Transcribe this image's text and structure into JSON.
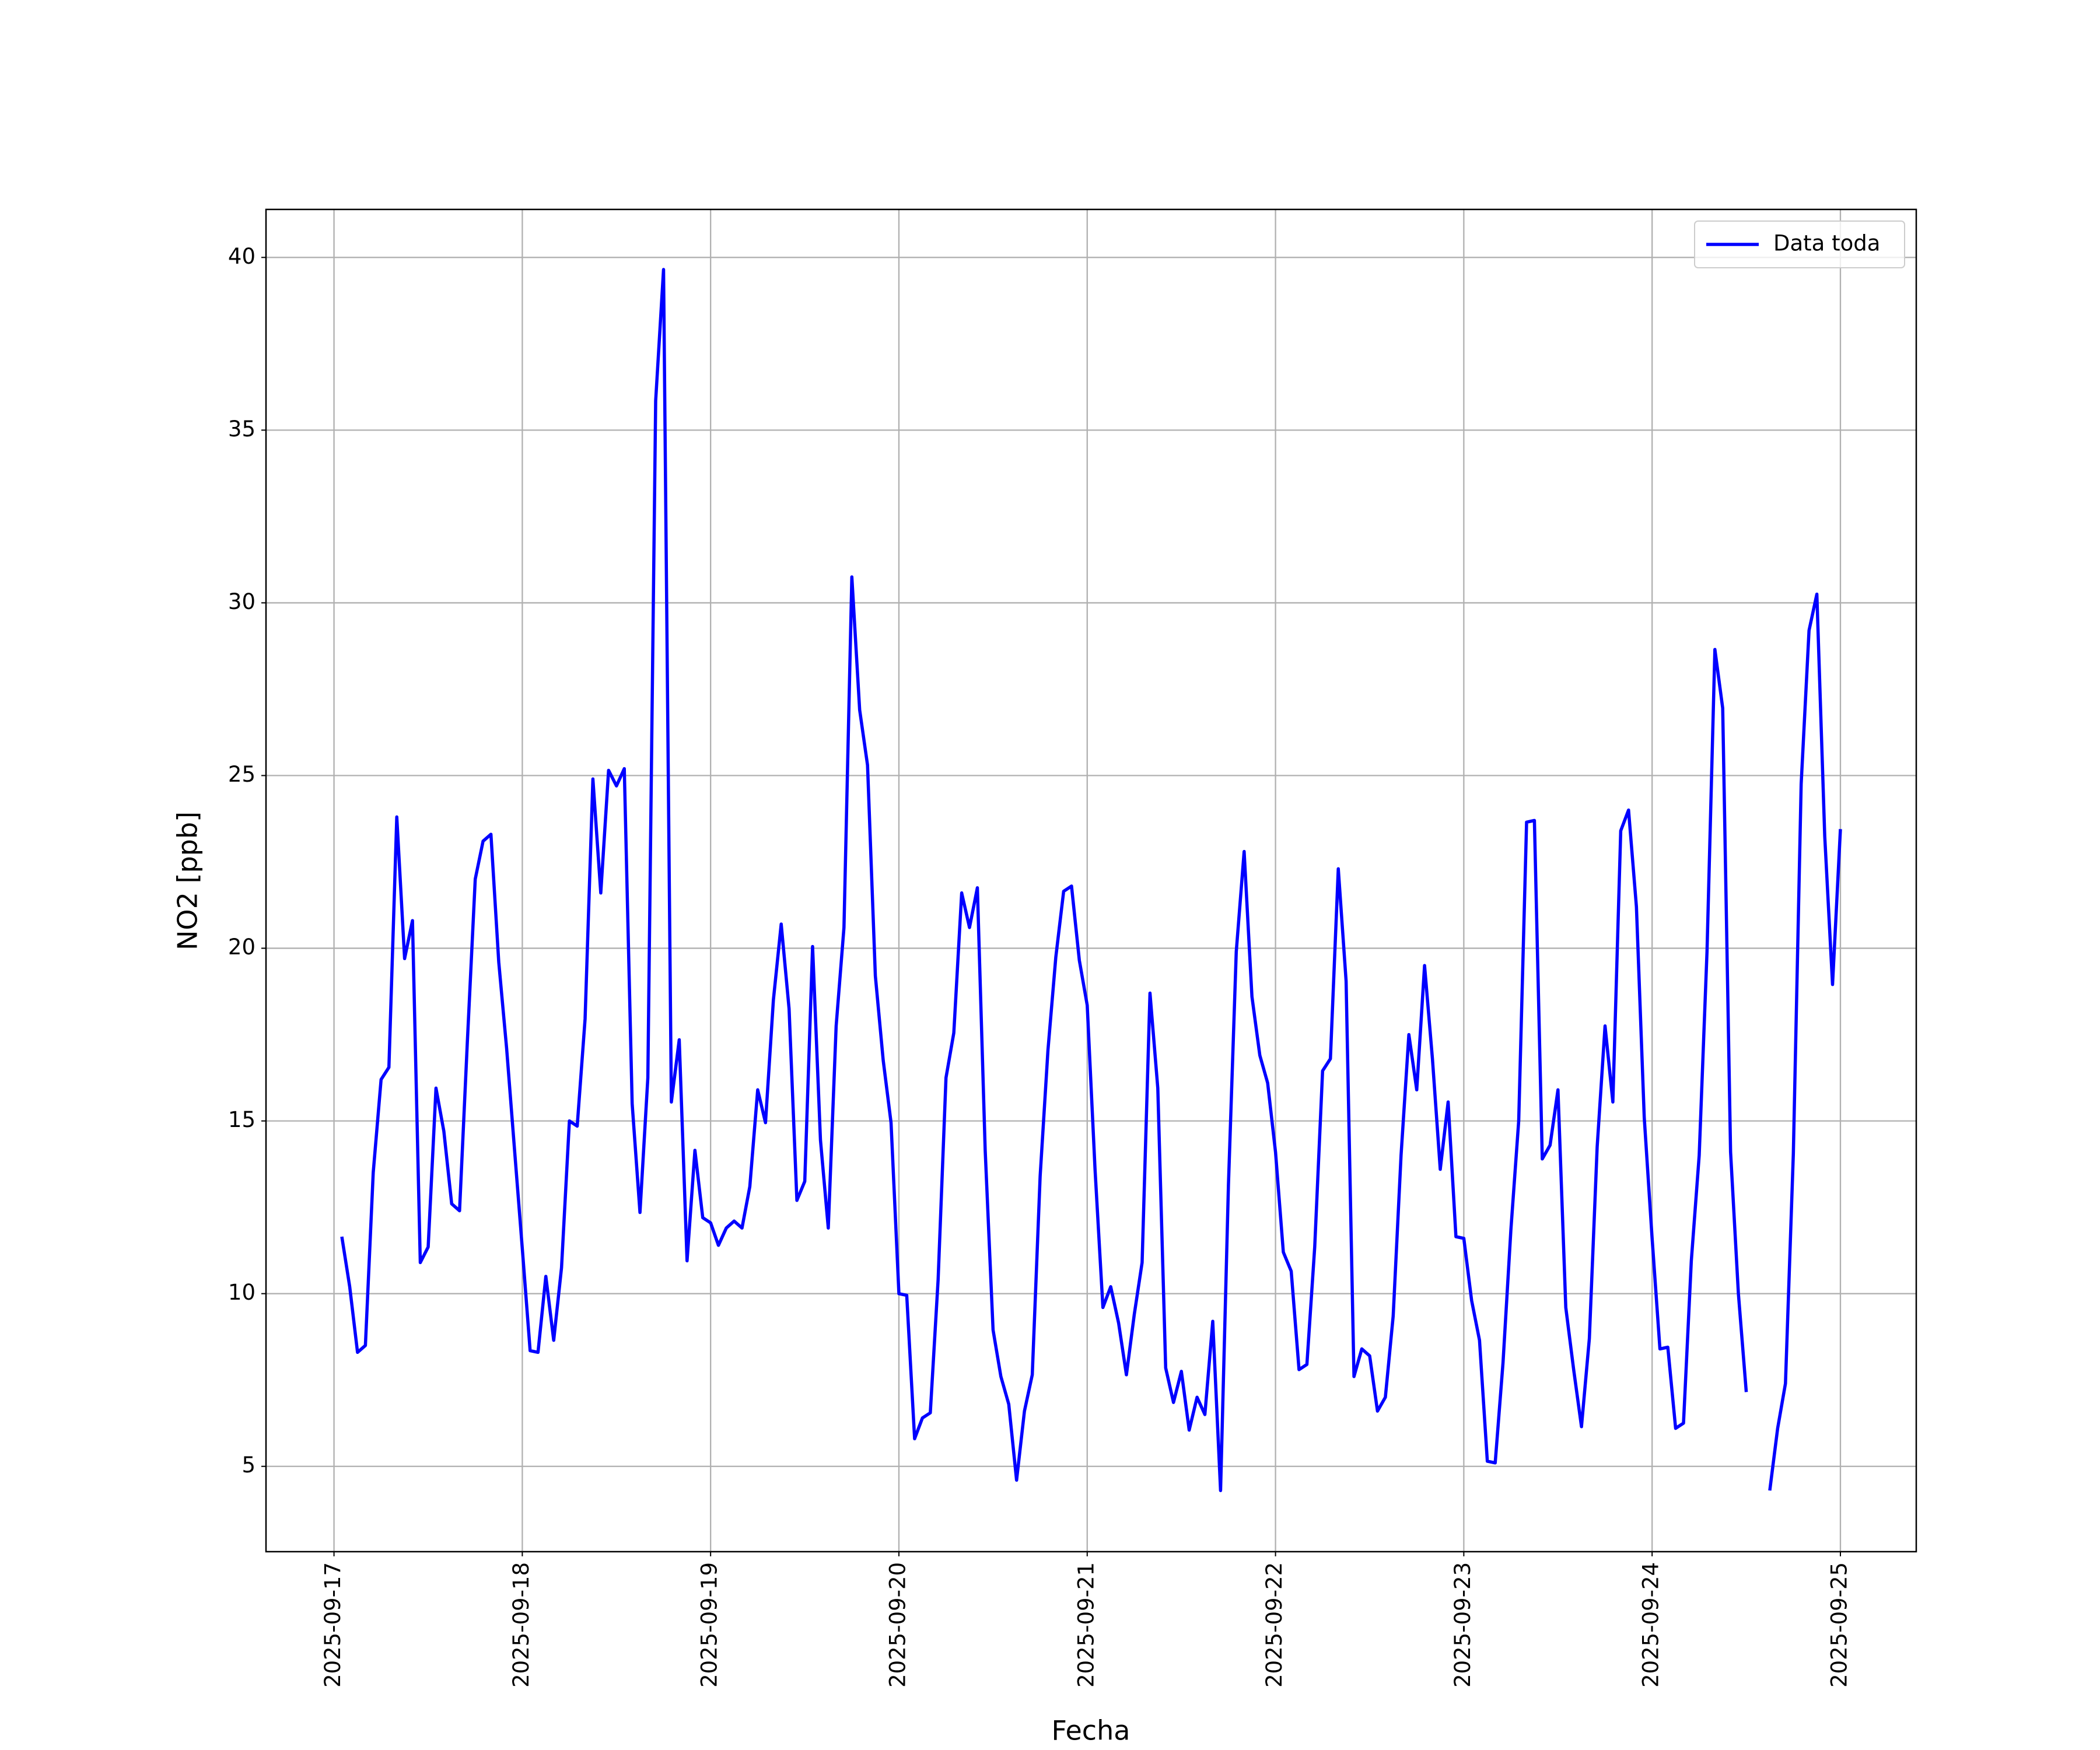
{
  "chart_data": {
    "type": "line",
    "xlabel": "Fecha",
    "ylabel": "NO2 [ppb]",
    "x": [
      "2025-09-17T01:00",
      "2025-09-17T02:00",
      "2025-09-17T03:00",
      "2025-09-17T04:00",
      "2025-09-17T05:00",
      "2025-09-17T06:00",
      "2025-09-17T07:00",
      "2025-09-17T08:00",
      "2025-09-17T09:00",
      "2025-09-17T10:00",
      "2025-09-17T11:00",
      "2025-09-17T12:00",
      "2025-09-17T13:00",
      "2025-09-17T14:00",
      "2025-09-17T15:00",
      "2025-09-17T16:00",
      "2025-09-17T17:00",
      "2025-09-17T18:00",
      "2025-09-17T19:00",
      "2025-09-17T20:00",
      "2025-09-17T21:00",
      "2025-09-17T22:00",
      "2025-09-17T23:00",
      "2025-09-18T00:00",
      "2025-09-18T01:00",
      "2025-09-18T02:00",
      "2025-09-18T03:00",
      "2025-09-18T04:00",
      "2025-09-18T05:00",
      "2025-09-18T06:00",
      "2025-09-18T07:00",
      "2025-09-18T08:00",
      "2025-09-18T09:00",
      "2025-09-18T10:00",
      "2025-09-18T11:00",
      "2025-09-18T12:00",
      "2025-09-18T13:00",
      "2025-09-18T14:00",
      "2025-09-18T15:00",
      "2025-09-18T16:00",
      "2025-09-18T17:00",
      "2025-09-18T18:00",
      "2025-09-18T19:00",
      "2025-09-18T20:00",
      "2025-09-18T21:00",
      "2025-09-18T22:00",
      "2025-09-18T23:00",
      "2025-09-19T00:00",
      "2025-09-19T01:00",
      "2025-09-19T02:00",
      "2025-09-19T03:00",
      "2025-09-19T04:00",
      "2025-09-19T05:00",
      "2025-09-19T06:00",
      "2025-09-19T07:00",
      "2025-09-19T08:00",
      "2025-09-19T09:00",
      "2025-09-19T10:00",
      "2025-09-19T11:00",
      "2025-09-19T12:00",
      "2025-09-19T13:00",
      "2025-09-19T14:00",
      "2025-09-19T15:00",
      "2025-09-19T16:00",
      "2025-09-19T17:00",
      "2025-09-19T18:00",
      "2025-09-19T19:00",
      "2025-09-19T20:00",
      "2025-09-19T21:00",
      "2025-09-19T22:00",
      "2025-09-19T23:00",
      "2025-09-20T00:00",
      "2025-09-20T01:00",
      "2025-09-20T02:00",
      "2025-09-20T03:00",
      "2025-09-20T04:00",
      "2025-09-20T05:00",
      "2025-09-20T06:00",
      "2025-09-20T07:00",
      "2025-09-20T08:00",
      "2025-09-20T09:00",
      "2025-09-20T10:00",
      "2025-09-20T11:00",
      "2025-09-20T12:00",
      "2025-09-20T13:00",
      "2025-09-20T14:00",
      "2025-09-20T15:00",
      "2025-09-20T16:00",
      "2025-09-20T17:00",
      "2025-09-20T18:00",
      "2025-09-20T19:00",
      "2025-09-20T20:00",
      "2025-09-20T21:00",
      "2025-09-20T22:00",
      "2025-09-20T23:00",
      "2025-09-21T00:00",
      "2025-09-21T01:00",
      "2025-09-21T02:00",
      "2025-09-21T03:00",
      "2025-09-21T04:00",
      "2025-09-21T05:00",
      "2025-09-21T06:00",
      "2025-09-21T07:00",
      "2025-09-21T08:00",
      "2025-09-21T09:00",
      "2025-09-21T10:00",
      "2025-09-21T11:00",
      "2025-09-21T12:00",
      "2025-09-21T13:00",
      "2025-09-21T14:00",
      "2025-09-21T15:00",
      "2025-09-21T16:00",
      "2025-09-21T17:00",
      "2025-09-21T18:00",
      "2025-09-21T19:00",
      "2025-09-21T20:00",
      "2025-09-21T21:00",
      "2025-09-21T22:00",
      "2025-09-21T23:00",
      "2025-09-22T00:00",
      "2025-09-22T01:00",
      "2025-09-22T02:00",
      "2025-09-22T03:00",
      "2025-09-22T04:00",
      "2025-09-22T05:00",
      "2025-09-22T06:00",
      "2025-09-22T07:00",
      "2025-09-22T08:00",
      "2025-09-22T09:00",
      "2025-09-22T10:00",
      "2025-09-22T11:00",
      "2025-09-22T12:00",
      "2025-09-22T13:00",
      "2025-09-22T14:00",
      "2025-09-22T15:00",
      "2025-09-22T16:00",
      "2025-09-22T17:00",
      "2025-09-22T18:00",
      "2025-09-22T19:00",
      "2025-09-22T20:00",
      "2025-09-22T21:00",
      "2025-09-22T22:00",
      "2025-09-22T23:00",
      "2025-09-23T00:00",
      "2025-09-23T01:00",
      "2025-09-23T02:00",
      "2025-09-23T03:00",
      "2025-09-23T04:00",
      "2025-09-23T05:00",
      "2025-09-23T06:00",
      "2025-09-23T07:00",
      "2025-09-23T08:00",
      "2025-09-23T09:00",
      "2025-09-23T10:00",
      "2025-09-23T11:00",
      "2025-09-23T12:00",
      "2025-09-23T13:00",
      "2025-09-23T14:00",
      "2025-09-23T15:00",
      "2025-09-23T16:00",
      "2025-09-23T17:00",
      "2025-09-23T18:00",
      "2025-09-23T19:00",
      "2025-09-23T20:00",
      "2025-09-23T21:00",
      "2025-09-23T22:00",
      "2025-09-23T23:00",
      "2025-09-24T00:00",
      "2025-09-24T01:00",
      "2025-09-24T02:00",
      "2025-09-24T03:00",
      "2025-09-24T04:00",
      "2025-09-24T05:00",
      "2025-09-24T06:00",
      "2025-09-24T07:00",
      "2025-09-24T08:00",
      "2025-09-24T09:00",
      "2025-09-24T10:00",
      "2025-09-24T11:00",
      "2025-09-24T12:00",
      "2025-09-24T13:00",
      "2025-09-24T14:00",
      "2025-09-24T15:00",
      "2025-09-24T16:00",
      "2025-09-24T17:00",
      "2025-09-24T18:00",
      "2025-09-24T19:00",
      "2025-09-24T20:00",
      "2025-09-24T21:00",
      "2025-09-24T22:00",
      "2025-09-24T23:00",
      "2025-09-25T00:00"
    ],
    "series": [
      {
        "name": "Data toda",
        "color": "#0000ff",
        "values": [
          11.65,
          10.2,
          8.3,
          8.5,
          13.5,
          16.2,
          16.55,
          23.8,
          19.7,
          20.8,
          10.9,
          11.35,
          15.95,
          14.7,
          12.6,
          12.4,
          17.3,
          22.0,
          23.1,
          23.3,
          19.6,
          17.1,
          14.2,
          11.3,
          8.35,
          8.3,
          10.5,
          8.65,
          10.75,
          15.0,
          14.85,
          17.95,
          24.9,
          21.6,
          25.15,
          24.7,
          25.2,
          15.5,
          12.35,
          16.25,
          35.85,
          39.65,
          15.55,
          17.35,
          10.95,
          14.15,
          12.2,
          12.05,
          11.4,
          11.9,
          12.1,
          11.9,
          13.1,
          15.9,
          14.95,
          18.5,
          20.7,
          18.25,
          12.7,
          13.25,
          20.05,
          14.45,
          11.9,
          17.75,
          20.6,
          30.75,
          26.9,
          25.3,
          19.2,
          16.75,
          14.95,
          10.0,
          9.95,
          5.8,
          6.4,
          6.55,
          10.4,
          16.25,
          17.55,
          21.6,
          20.6,
          21.75,
          14.15,
          8.95,
          7.6,
          6.8,
          4.6,
          6.6,
          7.65,
          13.4,
          17.05,
          19.75,
          21.65,
          21.8,
          19.65,
          18.35,
          13.6,
          9.6,
          10.2,
          9.15,
          7.65,
          9.4,
          10.9,
          18.7,
          15.95,
          7.85,
          6.85,
          7.75,
          6.05,
          7.0,
          6.5,
          9.2,
          4.3,
          13.15,
          19.9,
          22.8,
          18.6,
          16.9,
          16.1,
          14.1,
          11.2,
          10.65,
          7.8,
          7.95,
          11.35,
          16.45,
          16.8,
          22.3,
          19.05,
          7.6,
          8.4,
          8.2,
          6.6,
          7.0,
          9.35,
          14.0,
          17.5,
          15.9,
          19.5,
          16.8,
          13.6,
          15.55,
          11.65,
          11.6,
          9.8,
          8.65,
          5.15,
          5.1,
          8.0,
          11.85,
          15.0,
          23.65,
          23.7,
          13.9,
          14.3,
          15.9,
          9.6,
          7.8,
          6.15,
          8.7,
          14.25,
          17.75,
          15.55,
          23.4,
          24.0,
          21.2,
          15.1,
          11.6,
          8.4,
          8.45,
          6.1,
          6.25,
          10.95,
          14.0,
          19.9,
          28.65,
          26.95,
          14.1,
          10.0,
          7.15,
          null,
          null,
          4.3,
          6.1,
          7.4,
          14.05,
          24.75,
          29.2,
          30.25,
          23.25,
          18.95,
          23.45
        ]
      }
    ],
    "xlim": [
      "2025-09-16T15:20",
      "2025-09-25T09:40"
    ],
    "xticks": [
      "2025-09-17",
      "2025-09-18",
      "2025-09-19",
      "2025-09-20",
      "2025-09-21",
      "2025-09-22",
      "2025-09-23",
      "2025-09-24",
      "2025-09-25"
    ],
    "ylim": [
      2.53,
      41.39
    ],
    "yticks": [
      5,
      10,
      15,
      20,
      25,
      30,
      35,
      40
    ],
    "grid": true,
    "legend": "upper right"
  }
}
